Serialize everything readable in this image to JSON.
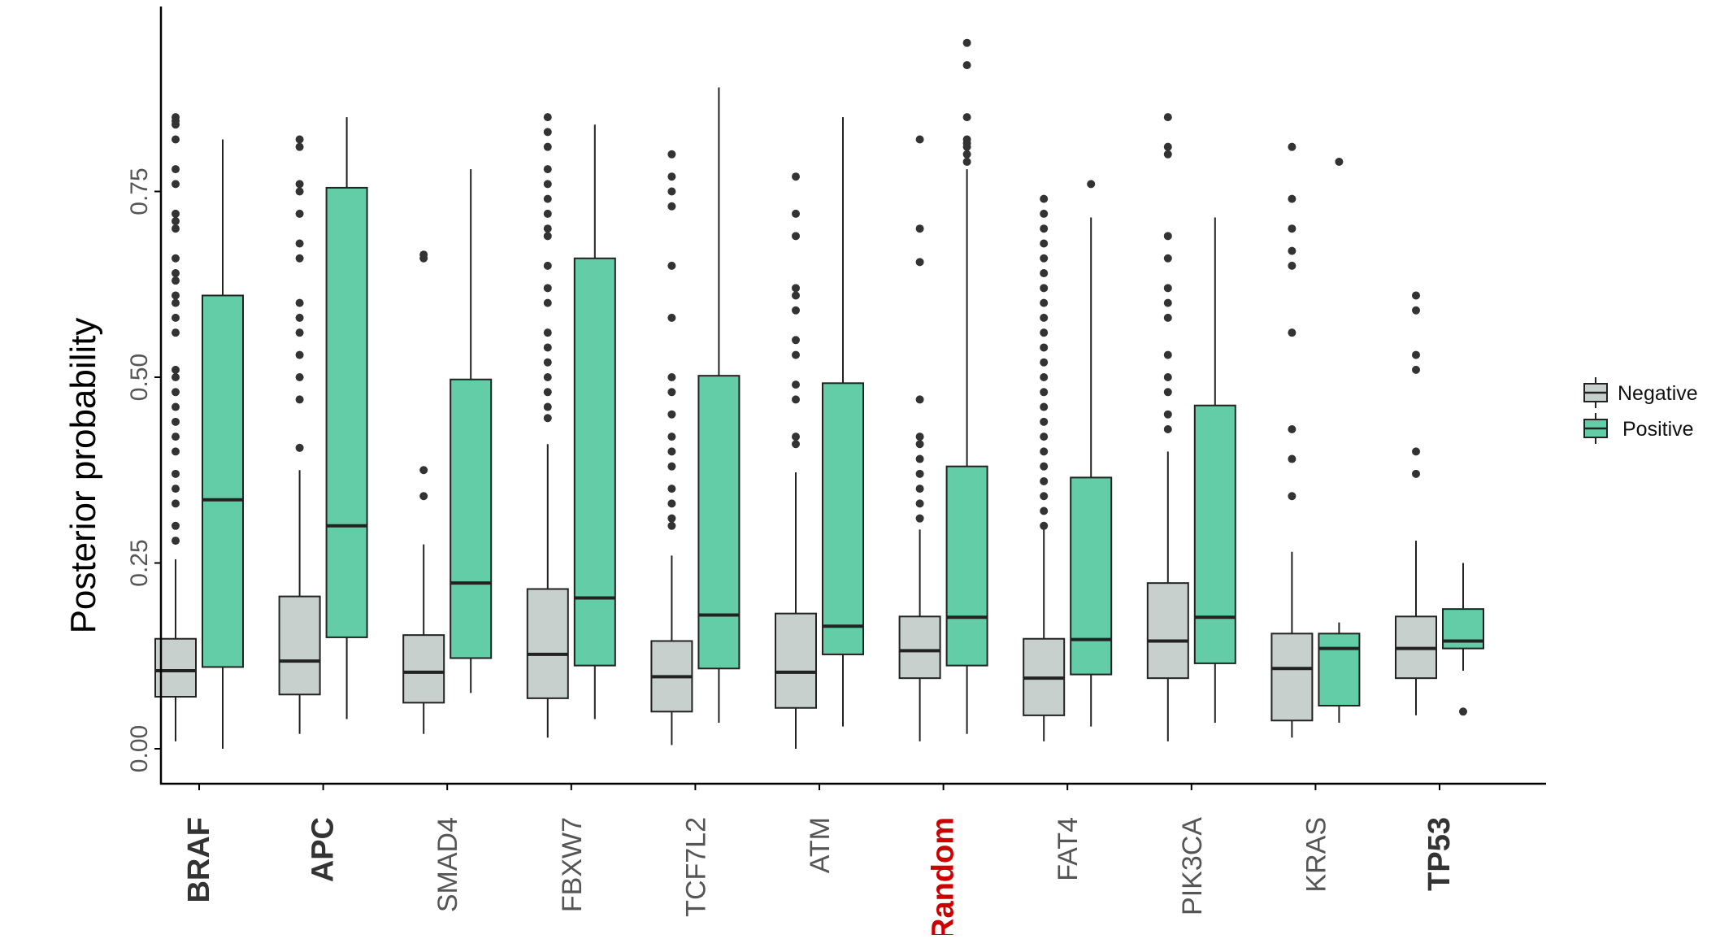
{
  "chart_data": {
    "type": "boxplot",
    "ylabel": "Posterior probability",
    "xlabel": "",
    "ylim": [
      0,
      1.0
    ],
    "yticks": [
      "0.00",
      "0.25",
      "0.50",
      "0.75"
    ],
    "grid": false,
    "legend": {
      "placement": "right",
      "entries": [
        {
          "name": "Negative",
          "color": "#c7d0cc"
        },
        {
          "name": "Positive",
          "color": "#62cda7"
        }
      ]
    },
    "categories": [
      {
        "name": "BRAF",
        "bold": true,
        "color": "#333333"
      },
      {
        "name": "APC",
        "bold": true,
        "color": "#333333"
      },
      {
        "name": "SMAD4",
        "bold": false,
        "color": "#555555"
      },
      {
        "name": "FBXW7",
        "bold": false,
        "color": "#555555"
      },
      {
        "name": "TCF7L2",
        "bold": false,
        "color": "#555555"
      },
      {
        "name": "ATM",
        "bold": false,
        "color": "#555555"
      },
      {
        "name": "Random",
        "bold": true,
        "color": "#cc0000"
      },
      {
        "name": "FAT4",
        "bold": false,
        "color": "#555555"
      },
      {
        "name": "PIK3CA",
        "bold": false,
        "color": "#555555"
      },
      {
        "name": "KRAS",
        "bold": false,
        "color": "#555555"
      },
      {
        "name": "TP53",
        "bold": true,
        "color": "#333333"
      }
    ],
    "series": [
      {
        "name": "Negative",
        "boxes": [
          {
            "low": 0.01,
            "q1": 0.07,
            "median": 0.105,
            "q3": 0.148,
            "high": 0.255,
            "outliers": [
              0.28,
              0.3,
              0.33,
              0.35,
              0.37,
              0.4,
              0.42,
              0.44,
              0.46,
              0.48,
              0.5,
              0.51,
              0.56,
              0.58,
              0.6,
              0.61,
              0.63,
              0.64,
              0.66,
              0.7,
              0.71,
              0.72,
              0.76,
              0.78,
              0.82,
              0.84,
              0.845,
              0.85
            ]
          },
          {
            "low": 0.02,
            "q1": 0.073,
            "median": 0.118,
            "q3": 0.205,
            "high": 0.375,
            "outliers": [
              0.405,
              0.47,
              0.5,
              0.53,
              0.56,
              0.58,
              0.6,
              0.66,
              0.68,
              0.72,
              0.75,
              0.76,
              0.81,
              0.82
            ]
          },
          {
            "low": 0.02,
            "q1": 0.062,
            "median": 0.103,
            "q3": 0.153,
            "high": 0.275,
            "outliers": [
              0.34,
              0.375,
              0.66,
              0.665
            ]
          },
          {
            "low": 0.015,
            "q1": 0.068,
            "median": 0.127,
            "q3": 0.215,
            "high": 0.41,
            "outliers": [
              0.445,
              0.46,
              0.48,
              0.5,
              0.52,
              0.54,
              0.56,
              0.6,
              0.62,
              0.65,
              0.69,
              0.7,
              0.72,
              0.74,
              0.76,
              0.78,
              0.81,
              0.83,
              0.85
            ]
          },
          {
            "low": 0.005,
            "q1": 0.05,
            "median": 0.097,
            "q3": 0.145,
            "high": 0.26,
            "outliers": [
              0.3,
              0.31,
              0.33,
              0.35,
              0.38,
              0.4,
              0.42,
              0.45,
              0.48,
              0.5,
              0.58,
              0.65,
              0.73,
              0.75,
              0.77,
              0.8
            ]
          },
          {
            "low": 0.0,
            "q1": 0.055,
            "median": 0.103,
            "q3": 0.182,
            "high": 0.372,
            "outliers": [
              0.41,
              0.42,
              0.47,
              0.49,
              0.53,
              0.55,
              0.59,
              0.61,
              0.62,
              0.69,
              0.72,
              0.77
            ]
          },
          {
            "low": 0.01,
            "q1": 0.095,
            "median": 0.132,
            "q3": 0.178,
            "high": 0.295,
            "outliers": [
              0.31,
              0.33,
              0.35,
              0.37,
              0.39,
              0.41,
              0.42,
              0.47,
              0.655,
              0.7,
              0.82
            ]
          },
          {
            "low": 0.01,
            "q1": 0.045,
            "median": 0.095,
            "q3": 0.148,
            "high": 0.3,
            "outliers": [
              0.3,
              0.32,
              0.34,
              0.36,
              0.38,
              0.4,
              0.42,
              0.44,
              0.46,
              0.48,
              0.5,
              0.52,
              0.54,
              0.56,
              0.58,
              0.6,
              0.62,
              0.64,
              0.66,
              0.68,
              0.7,
              0.72,
              0.74
            ]
          },
          {
            "low": 0.01,
            "q1": 0.095,
            "median": 0.145,
            "q3": 0.223,
            "high": 0.4,
            "outliers": [
              0.43,
              0.45,
              0.48,
              0.5,
              0.53,
              0.58,
              0.6,
              0.62,
              0.66,
              0.69,
              0.8,
              0.81,
              0.85
            ]
          },
          {
            "low": 0.015,
            "q1": 0.038,
            "median": 0.108,
            "q3": 0.155,
            "high": 0.265,
            "outliers": [
              0.34,
              0.39,
              0.43,
              0.56,
              0.65,
              0.67,
              0.7,
              0.74,
              0.81
            ]
          },
          {
            "low": 0.045,
            "q1": 0.095,
            "median": 0.135,
            "q3": 0.178,
            "high": 0.28,
            "outliers": [
              0.37,
              0.4,
              0.51,
              0.53,
              0.59,
              0.61
            ]
          }
        ]
      },
      {
        "name": "Positive",
        "boxes": [
          {
            "low": 0.0,
            "q1": 0.11,
            "median": 0.335,
            "q3": 0.61,
            "high": 0.82,
            "outliers": []
          },
          {
            "low": 0.04,
            "q1": 0.15,
            "median": 0.3,
            "q3": 0.755,
            "high": 0.85,
            "outliers": []
          },
          {
            "low": 0.075,
            "q1": 0.122,
            "median": 0.223,
            "q3": 0.497,
            "high": 0.78,
            "outliers": []
          },
          {
            "low": 0.04,
            "q1": 0.112,
            "median": 0.203,
            "q3": 0.66,
            "high": 0.84,
            "outliers": []
          },
          {
            "low": 0.035,
            "q1": 0.108,
            "median": 0.18,
            "q3": 0.502,
            "high": 0.89,
            "outliers": []
          },
          {
            "low": 0.03,
            "q1": 0.127,
            "median": 0.165,
            "q3": 0.492,
            "high": 0.85,
            "outliers": []
          },
          {
            "low": 0.02,
            "q1": 0.112,
            "median": 0.177,
            "q3": 0.38,
            "high": 0.78,
            "outliers": [
              0.79,
              0.8,
              0.81,
              0.815,
              0.82,
              0.85,
              0.92,
              0.95
            ]
          },
          {
            "low": 0.03,
            "q1": 0.1,
            "median": 0.147,
            "q3": 0.365,
            "high": 0.715,
            "outliers": [
              0.76
            ]
          },
          {
            "low": 0.035,
            "q1": 0.115,
            "median": 0.177,
            "q3": 0.462,
            "high": 0.715,
            "outliers": []
          },
          {
            "low": 0.035,
            "q1": 0.058,
            "median": 0.135,
            "q3": 0.155,
            "high": 0.17,
            "outliers": [
              0.79
            ]
          },
          {
            "low": 0.105,
            "q1": 0.135,
            "median": 0.145,
            "q3": 0.188,
            "high": 0.25,
            "outliers": [
              0.05
            ]
          }
        ]
      }
    ]
  }
}
